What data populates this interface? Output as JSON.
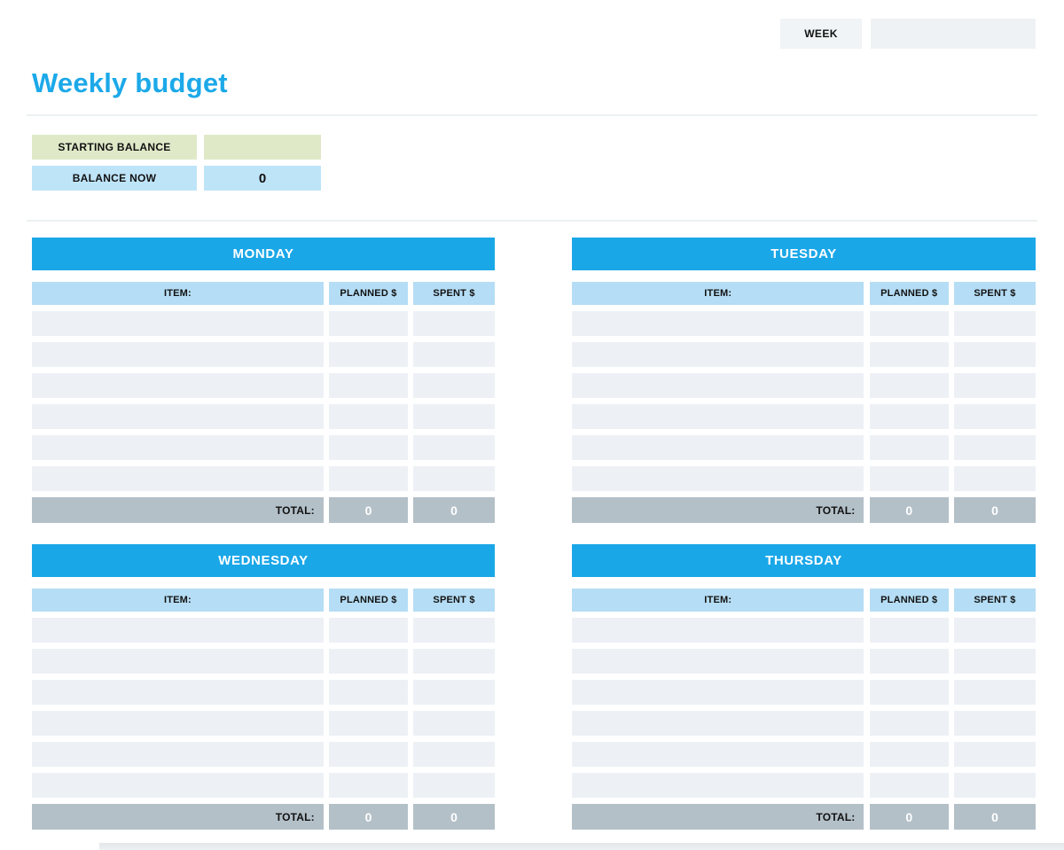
{
  "header": {
    "week_label": "WEEK",
    "week_value": ""
  },
  "title": "Weekly budget",
  "balance": {
    "starting_label": "STARTING BALANCE",
    "starting_value": "",
    "now_label": "BALANCE NOW",
    "now_value": "0"
  },
  "table": {
    "item_header": "ITEM:",
    "planned_header": "PLANNED $",
    "spent_header": "SPENT $",
    "total_label": "TOTAL:",
    "rows_per_day": 6
  },
  "days": [
    {
      "name": "MONDAY",
      "rows": [
        [
          "",
          "",
          ""
        ],
        [
          "",
          "",
          ""
        ],
        [
          "",
          "",
          ""
        ],
        [
          "",
          "",
          ""
        ],
        [
          "",
          "",
          ""
        ],
        [
          "",
          "",
          ""
        ]
      ],
      "total_planned": "0",
      "total_spent": "0"
    },
    {
      "name": "TUESDAY",
      "rows": [
        [
          "",
          "",
          ""
        ],
        [
          "",
          "",
          ""
        ],
        [
          "",
          "",
          ""
        ],
        [
          "",
          "",
          ""
        ],
        [
          "",
          "",
          ""
        ],
        [
          "",
          "",
          ""
        ]
      ],
      "total_planned": "0",
      "total_spent": "0"
    },
    {
      "name": "WEDNESDAY",
      "rows": [
        [
          "",
          "",
          ""
        ],
        [
          "",
          "",
          ""
        ],
        [
          "",
          "",
          ""
        ],
        [
          "",
          "",
          ""
        ],
        [
          "",
          "",
          ""
        ],
        [
          "",
          "",
          ""
        ]
      ],
      "total_planned": "0",
      "total_spent": "0"
    },
    {
      "name": "THURSDAY",
      "rows": [
        [
          "",
          "",
          ""
        ],
        [
          "",
          "",
          ""
        ],
        [
          "",
          "",
          ""
        ],
        [
          "",
          "",
          ""
        ],
        [
          "",
          "",
          ""
        ],
        [
          "",
          "",
          ""
        ]
      ],
      "total_planned": "0",
      "total_spent": "0"
    }
  ],
  "colors": {
    "accent_blue": "#1aa7e8",
    "title_blue": "#1ca9e9",
    "light_blue": "#b5ddf5",
    "pale_blue": "#bee4f8",
    "pale_green": "#dfe9c8",
    "row_gray": "#edf1f5",
    "total_gray": "#b4c0c8",
    "week_label_gray": "#f0f4f7",
    "week_value_gray": "#eff2f5",
    "page_bg": "#ffffff"
  }
}
